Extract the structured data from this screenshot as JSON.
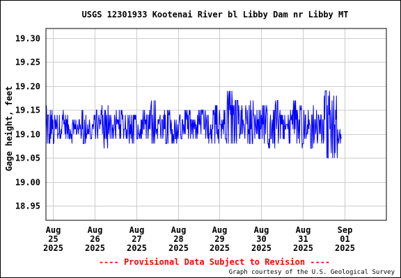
{
  "chart_data": {
    "type": "line",
    "title": "USGS 12301933 Kootenai River bl Libby Dam nr Libby MT",
    "ylabel": "Gage height, feet",
    "xlabel": "",
    "ylim": [
      18.92,
      19.32
    ],
    "yticks": [
      "19.30",
      "19.25",
      "19.20",
      "19.15",
      "19.10",
      "19.05",
      "19.00",
      "18.95"
    ],
    "xlim": [
      "2025-08-24T20:00",
      "2025-09-02T00:00"
    ],
    "xticks": [
      {
        "month": "Aug",
        "day": "25",
        "year": "2025",
        "date": "2025-08-25"
      },
      {
        "month": "Aug",
        "day": "26",
        "year": "2025",
        "date": "2025-08-26"
      },
      {
        "month": "Aug",
        "day": "27",
        "year": "2025",
        "date": "2025-08-27"
      },
      {
        "month": "Aug",
        "day": "28",
        "year": "2025",
        "date": "2025-08-28"
      },
      {
        "month": "Aug",
        "day": "29",
        "year": "2025",
        "date": "2025-08-29"
      },
      {
        "month": "Aug",
        "day": "30",
        "year": "2025",
        "date": "2025-08-30"
      },
      {
        "month": "Aug",
        "day": "31",
        "year": "2025",
        "date": "2025-08-31"
      },
      {
        "month": "Sep",
        "day": "01",
        "year": "2025",
        "date": "2025-09-01"
      }
    ],
    "grid": true,
    "series": [
      {
        "color": "#0000ff",
        "x": [
          "2025-08-24T20:00",
          "2025-08-25T00:00",
          "2025-08-25T04:00",
          "2025-08-25T08:00",
          "2025-08-25T12:00",
          "2025-08-25T16:00",
          "2025-08-25T20:00",
          "2025-08-26T00:00",
          "2025-08-26T04:00",
          "2025-08-26T08:00",
          "2025-08-26T12:00",
          "2025-08-26T16:00",
          "2025-08-26T20:00",
          "2025-08-27T00:00",
          "2025-08-27T04:00",
          "2025-08-27T08:00",
          "2025-08-27T12:00",
          "2025-08-27T16:00",
          "2025-08-27T20:00",
          "2025-08-28T00:00",
          "2025-08-28T04:00",
          "2025-08-28T08:00",
          "2025-08-28T12:00",
          "2025-08-28T16:00",
          "2025-08-28T20:00",
          "2025-08-29T00:00",
          "2025-08-29T04:00",
          "2025-08-29T08:00",
          "2025-08-29T12:00",
          "2025-08-29T16:00",
          "2025-08-29T20:00",
          "2025-08-30T00:00",
          "2025-08-30T04:00",
          "2025-08-30T08:00",
          "2025-08-30T12:00",
          "2025-08-30T16:00",
          "2025-08-30T20:00",
          "2025-08-31T00:00",
          "2025-08-31T04:00",
          "2025-08-31T08:00",
          "2025-08-31T12:00",
          "2025-08-31T16:00",
          "2025-08-31T20:00"
        ],
        "min": [
          19.08,
          19.08,
          19.09,
          19.08,
          19.09,
          19.08,
          19.09,
          19.09,
          19.07,
          19.08,
          19.09,
          19.09,
          19.08,
          19.09,
          19.09,
          19.08,
          19.09,
          19.08,
          19.08,
          19.09,
          19.08,
          19.09,
          19.09,
          19.08,
          19.08,
          19.09,
          19.08,
          19.08,
          19.09,
          19.08,
          19.09,
          19.08,
          19.06,
          19.08,
          19.09,
          19.08,
          19.07,
          19.08,
          19.07,
          19.08,
          19.05,
          19.05,
          19.08
        ],
        "max": [
          19.16,
          19.14,
          19.15,
          19.14,
          19.13,
          19.15,
          19.14,
          19.15,
          19.16,
          19.14,
          19.15,
          19.14,
          19.14,
          19.13,
          19.15,
          19.17,
          19.14,
          19.15,
          19.14,
          19.14,
          19.15,
          19.14,
          19.15,
          19.14,
          19.16,
          19.15,
          19.19,
          19.17,
          19.16,
          19.17,
          19.15,
          19.16,
          19.15,
          19.17,
          19.14,
          19.17,
          19.16,
          19.15,
          19.17,
          19.14,
          19.19,
          19.18,
          19.11
        ]
      }
    ]
  },
  "footer": {
    "provisional": "---- Provisional Data Subject to Revision ----",
    "credit": "Graph courtesy of the U.S. Geological Survey"
  }
}
